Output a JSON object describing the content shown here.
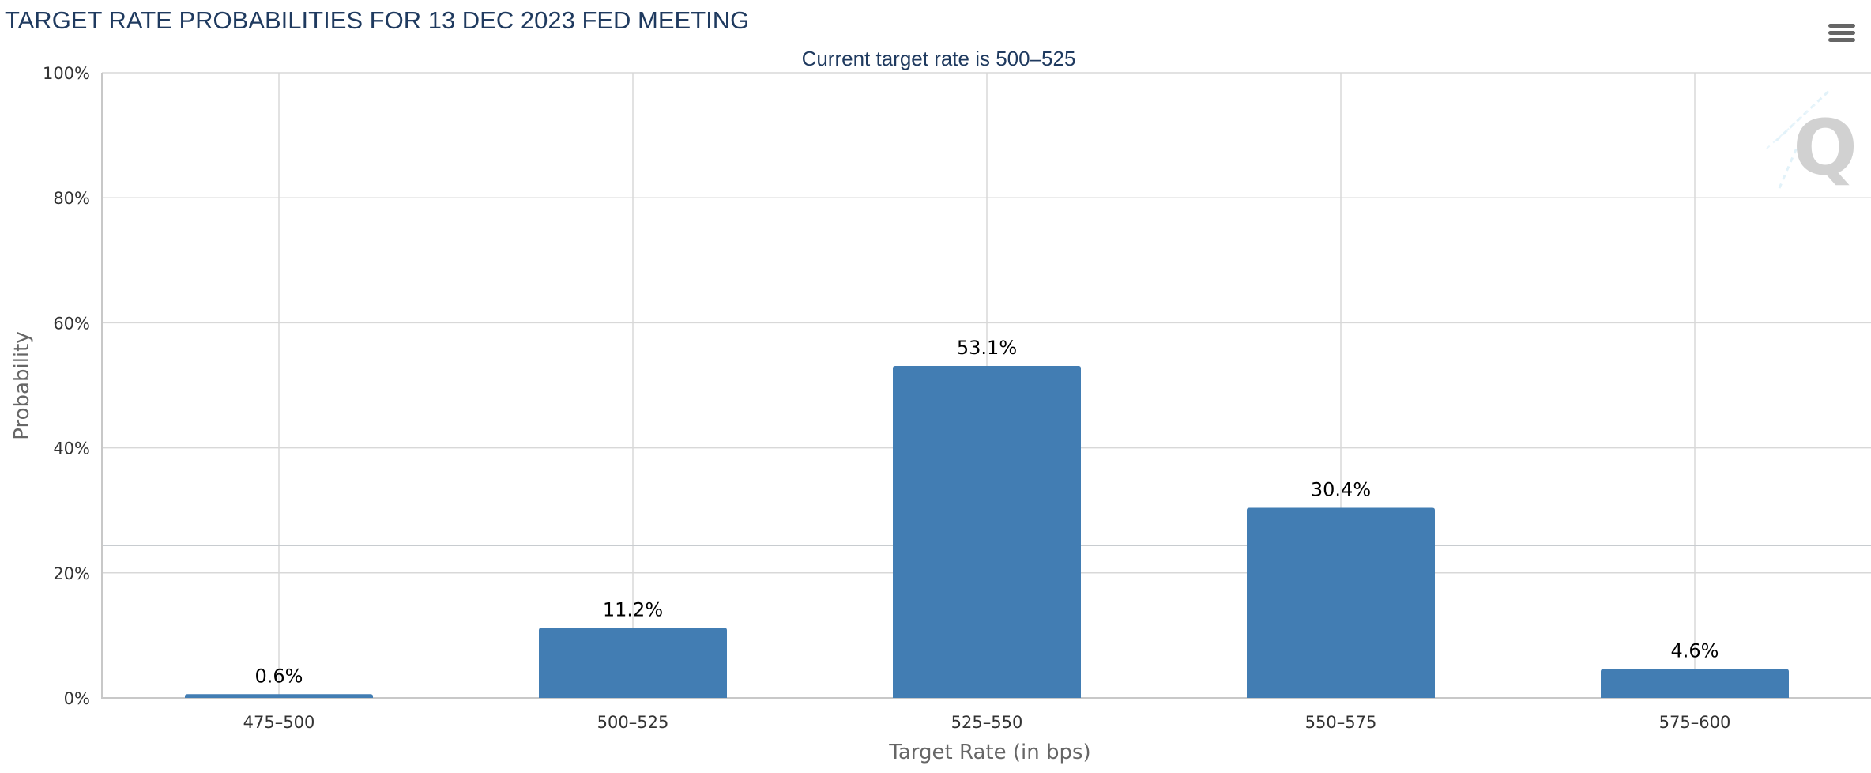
{
  "header": {
    "title": "TARGET RATE PROBABILITIES FOR 13 DEC 2023 FED MEETING",
    "menu_icon": "hamburger-menu-icon",
    "watermark_icon": "quikstrike-q-logo-icon"
  },
  "colors": {
    "bar": "#427db3",
    "title": "#1f3a5f",
    "grid": "#d8d8d8"
  },
  "chart_data": {
    "type": "bar",
    "title": "TARGET RATE PROBABILITIES FOR 13 DEC 2023 FED MEETING",
    "subtitle": "Current target rate is 500–525",
    "xlabel": "Target Rate (in bps)",
    "ylabel": "Probability",
    "categories": [
      "475–500",
      "500–525",
      "525–550",
      "550–575",
      "575–600"
    ],
    "values": [
      0.6,
      11.2,
      53.1,
      30.4,
      4.6
    ],
    "data_labels": [
      "0.6%",
      "11.2%",
      "53.1%",
      "30.4%",
      "4.6%"
    ],
    "ylim": [
      0,
      100
    ],
    "yticks": [
      0,
      20,
      40,
      60,
      80,
      100
    ],
    "ytick_labels": [
      "0%",
      "20%",
      "40%",
      "60%",
      "80%",
      "100%"
    ],
    "grid": true,
    "legend": "none"
  }
}
